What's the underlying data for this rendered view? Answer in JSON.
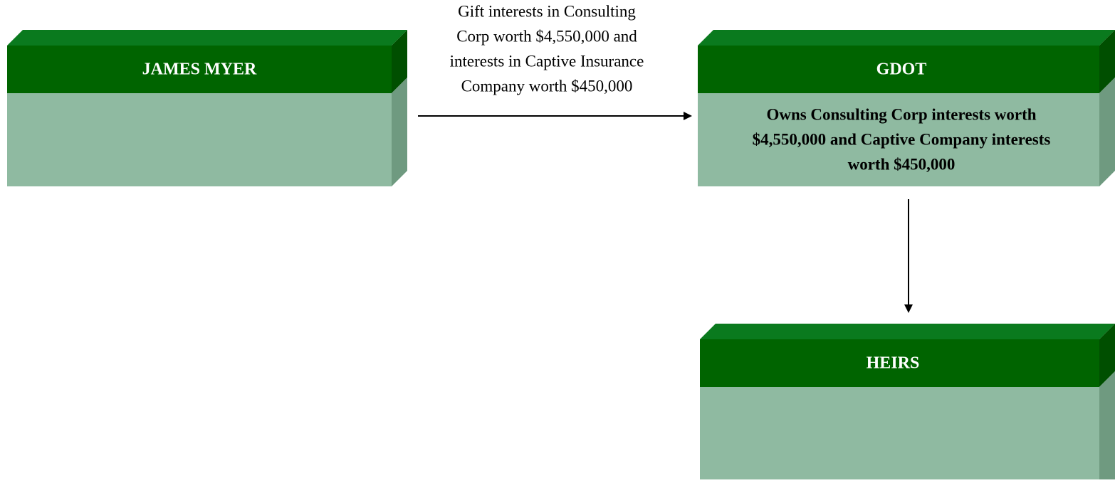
{
  "nodes": [
    {
      "label": "JAMES MYER"
    },
    {
      "label": "GDOT",
      "body": [
        "Owns Consulting Corp interests worth",
        "$4,550,000 and Captive Company interests",
        "worth $450,000"
      ]
    },
    {
      "label": "HEIRS"
    }
  ],
  "edges": [
    {
      "label": [
        "Gift interests in Consulting",
        "Corp worth $4,550,000 and",
        "interests in Captive Insurance",
        "Company worth $450,000"
      ]
    }
  ]
}
